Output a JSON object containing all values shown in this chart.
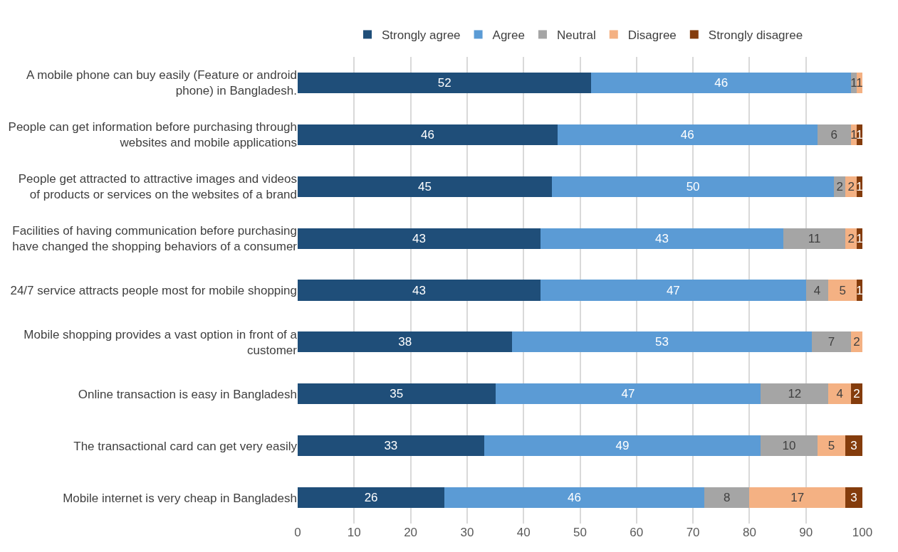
{
  "chart_data": {
    "type": "bar",
    "orientation": "horizontal",
    "stacked": true,
    "data_labels": true,
    "grid": "x",
    "legend": "top",
    "categories": [
      "A mobile phone can buy easily (Feature or android phone) in Bangladesh.",
      "People can get information before purchasing through websites and mobile applications",
      "People get attracted to attractive images and videos of products or services on the websites of a brand",
      "Facilities of having communication before purchasing have changed the shopping behaviors of a consumer",
      "24/7 service attracts people most for mobile shopping",
      "Mobile shopping provides a vast option in front of a customer",
      "Online transaction is easy in Bangladesh",
      "The transactional card can get very easily",
      "Mobile internet is very cheap in Bangladesh"
    ],
    "series": [
      {
        "name": "Strongly agree",
        "color": "#1f4e79",
        "values": [
          52,
          46,
          45,
          43,
          43,
          38,
          35,
          33,
          26
        ]
      },
      {
        "name": "Agree",
        "color": "#5b9bd5",
        "values": [
          46,
          46,
          50,
          43,
          47,
          53,
          47,
          49,
          46
        ]
      },
      {
        "name": "Neutral",
        "color": "#a5a5a5",
        "values": [
          1,
          6,
          2,
          11,
          4,
          7,
          12,
          10,
          8
        ]
      },
      {
        "name": "Disagree",
        "color": "#f4b183",
        "values": [
          1,
          1,
          2,
          2,
          5,
          2,
          4,
          5,
          17
        ]
      },
      {
        "name": "Strongly disagree",
        "color": "#843c0c",
        "values": [
          null,
          1,
          1,
          1,
          1,
          null,
          2,
          3,
          3
        ]
      }
    ],
    "xlim": [
      0,
      100
    ],
    "xticks": [
      0,
      10,
      20,
      30,
      40,
      50,
      60,
      70,
      80,
      90,
      100
    ]
  }
}
